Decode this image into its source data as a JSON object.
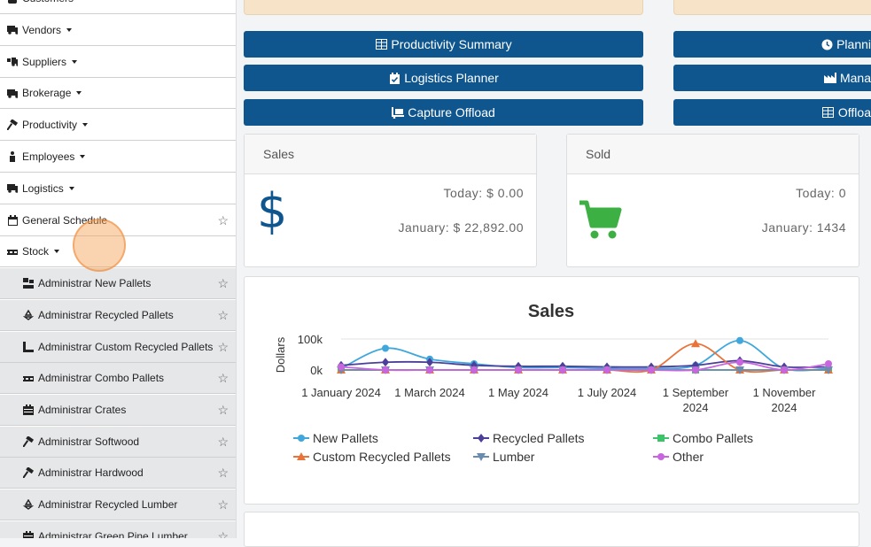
{
  "sidebar": {
    "items": [
      {
        "label": "Customers",
        "icon": "users-icon",
        "caret": true,
        "star": false
      },
      {
        "label": "Vendors",
        "icon": "truck-icon",
        "caret": true,
        "star": false
      },
      {
        "label": "Suppliers",
        "icon": "truck-loading-icon",
        "caret": true,
        "star": false
      },
      {
        "label": "Brokerage",
        "icon": "truck-moving-icon",
        "caret": true,
        "star": false
      },
      {
        "label": "Productivity",
        "icon": "hammer-icon",
        "caret": true,
        "star": false
      },
      {
        "label": "Employees",
        "icon": "person-icon",
        "caret": true,
        "star": false
      },
      {
        "label": "Logistics",
        "icon": "truck-icon",
        "caret": true,
        "star": false
      },
      {
        "label": "General Schedule",
        "icon": "calendar-icon",
        "caret": false,
        "star": true
      },
      {
        "label": "Stock",
        "icon": "pallet-icon",
        "caret": true,
        "star": false
      }
    ],
    "subitems": [
      {
        "label": "Administrar New Pallets",
        "icon": "pallet-boxes-icon"
      },
      {
        "label": "Administrar Recycled Pallets",
        "icon": "recycle-icon"
      },
      {
        "label": "Administrar Custom Recycled Pallets",
        "icon": "custom-pallet-icon"
      },
      {
        "label": "Administrar Combo Pallets",
        "icon": "pallet-icon"
      },
      {
        "label": "Administrar Crates",
        "icon": "crate-icon"
      },
      {
        "label": "Administrar Softwood",
        "icon": "hammer-icon"
      },
      {
        "label": "Administrar Hardwood",
        "icon": "hammer-icon"
      },
      {
        "label": "Administrar Recycled Lumber",
        "icon": "recycle-icon"
      },
      {
        "label": "Administrar Green Pine Lumber",
        "icon": "crate-icon"
      }
    ]
  },
  "buttons": {
    "left": [
      {
        "label": "Productivity Summary",
        "icon": "table-icon"
      },
      {
        "label": "Logistics Planner",
        "icon": "calendar-check-icon"
      },
      {
        "label": "Capture Offload",
        "icon": "dolly-icon"
      }
    ],
    "right": [
      {
        "label": "Planni",
        "icon": "clock-icon"
      },
      {
        "label": "Mana",
        "icon": "industry-icon"
      },
      {
        "label": "Offloa",
        "icon": "table-icon"
      }
    ]
  },
  "cards": {
    "sales": {
      "title": "Sales",
      "today": "Today: $ 0.00",
      "month": "January: $ 22,892.00",
      "icon": "dollar-icon",
      "icon_color": "#0f568e"
    },
    "sold": {
      "title": "Sold",
      "today": "Today: 0",
      "month": "January: 1434",
      "icon": "cart-icon",
      "icon_color": "#3cb043"
    }
  },
  "chart_data": {
    "type": "line",
    "title": "Sales",
    "ylabel": "Dollars",
    "xlabel": "",
    "ylim": [
      0,
      100000
    ],
    "yticks": [
      "100k",
      "0k"
    ],
    "x": [
      "1 January 2024",
      "1 February 2024",
      "1 March 2024",
      "1 April 2024",
      "1 May 2024",
      "1 June 2024",
      "1 July 2024",
      "1 August 2024",
      "1 September 2024",
      "1 October 2024",
      "1 November 2024",
      "1 December 2024"
    ],
    "xtick_labels": [
      "1 January 2024",
      "1 March 2024",
      "1 May 2024",
      "1 July 2024",
      "1 September 2024",
      "1 November 2024"
    ],
    "series": [
      {
        "name": "New Pallets",
        "color": "#3fa7dc",
        "marker": "circle",
        "values": [
          5000,
          70000,
          35000,
          20000,
          8000,
          8000,
          5000,
          5000,
          15000,
          95000,
          5000,
          5000
        ]
      },
      {
        "name": "Recycled Pallets",
        "color": "#4b3f9a",
        "marker": "diamond",
        "values": [
          15000,
          25000,
          25000,
          15000,
          12000,
          12000,
          10000,
          10000,
          15000,
          30000,
          10000,
          10000
        ]
      },
      {
        "name": "Combo Pallets",
        "color": "#3cc46a",
        "marker": "square",
        "values": [
          0,
          0,
          0,
          0,
          0,
          0,
          0,
          0,
          0,
          0,
          0,
          0
        ]
      },
      {
        "name": "Custom Recycled Pallets",
        "color": "#e8743b",
        "marker": "triangle",
        "values": [
          0,
          0,
          0,
          0,
          0,
          0,
          0,
          0,
          85000,
          0,
          0,
          0
        ]
      },
      {
        "name": "Lumber",
        "color": "#6a8caf",
        "marker": "triangle-down",
        "values": [
          0,
          0,
          0,
          0,
          0,
          0,
          0,
          0,
          0,
          0,
          0,
          0
        ]
      },
      {
        "name": "Other",
        "color": "#c866e0",
        "marker": "circle",
        "values": [
          10000,
          0,
          0,
          0,
          0,
          0,
          0,
          0,
          0,
          25000,
          0,
          20000
        ]
      }
    ],
    "legend_position": "bottom",
    "grid": true
  },
  "bottom_card_fragment": ""
}
